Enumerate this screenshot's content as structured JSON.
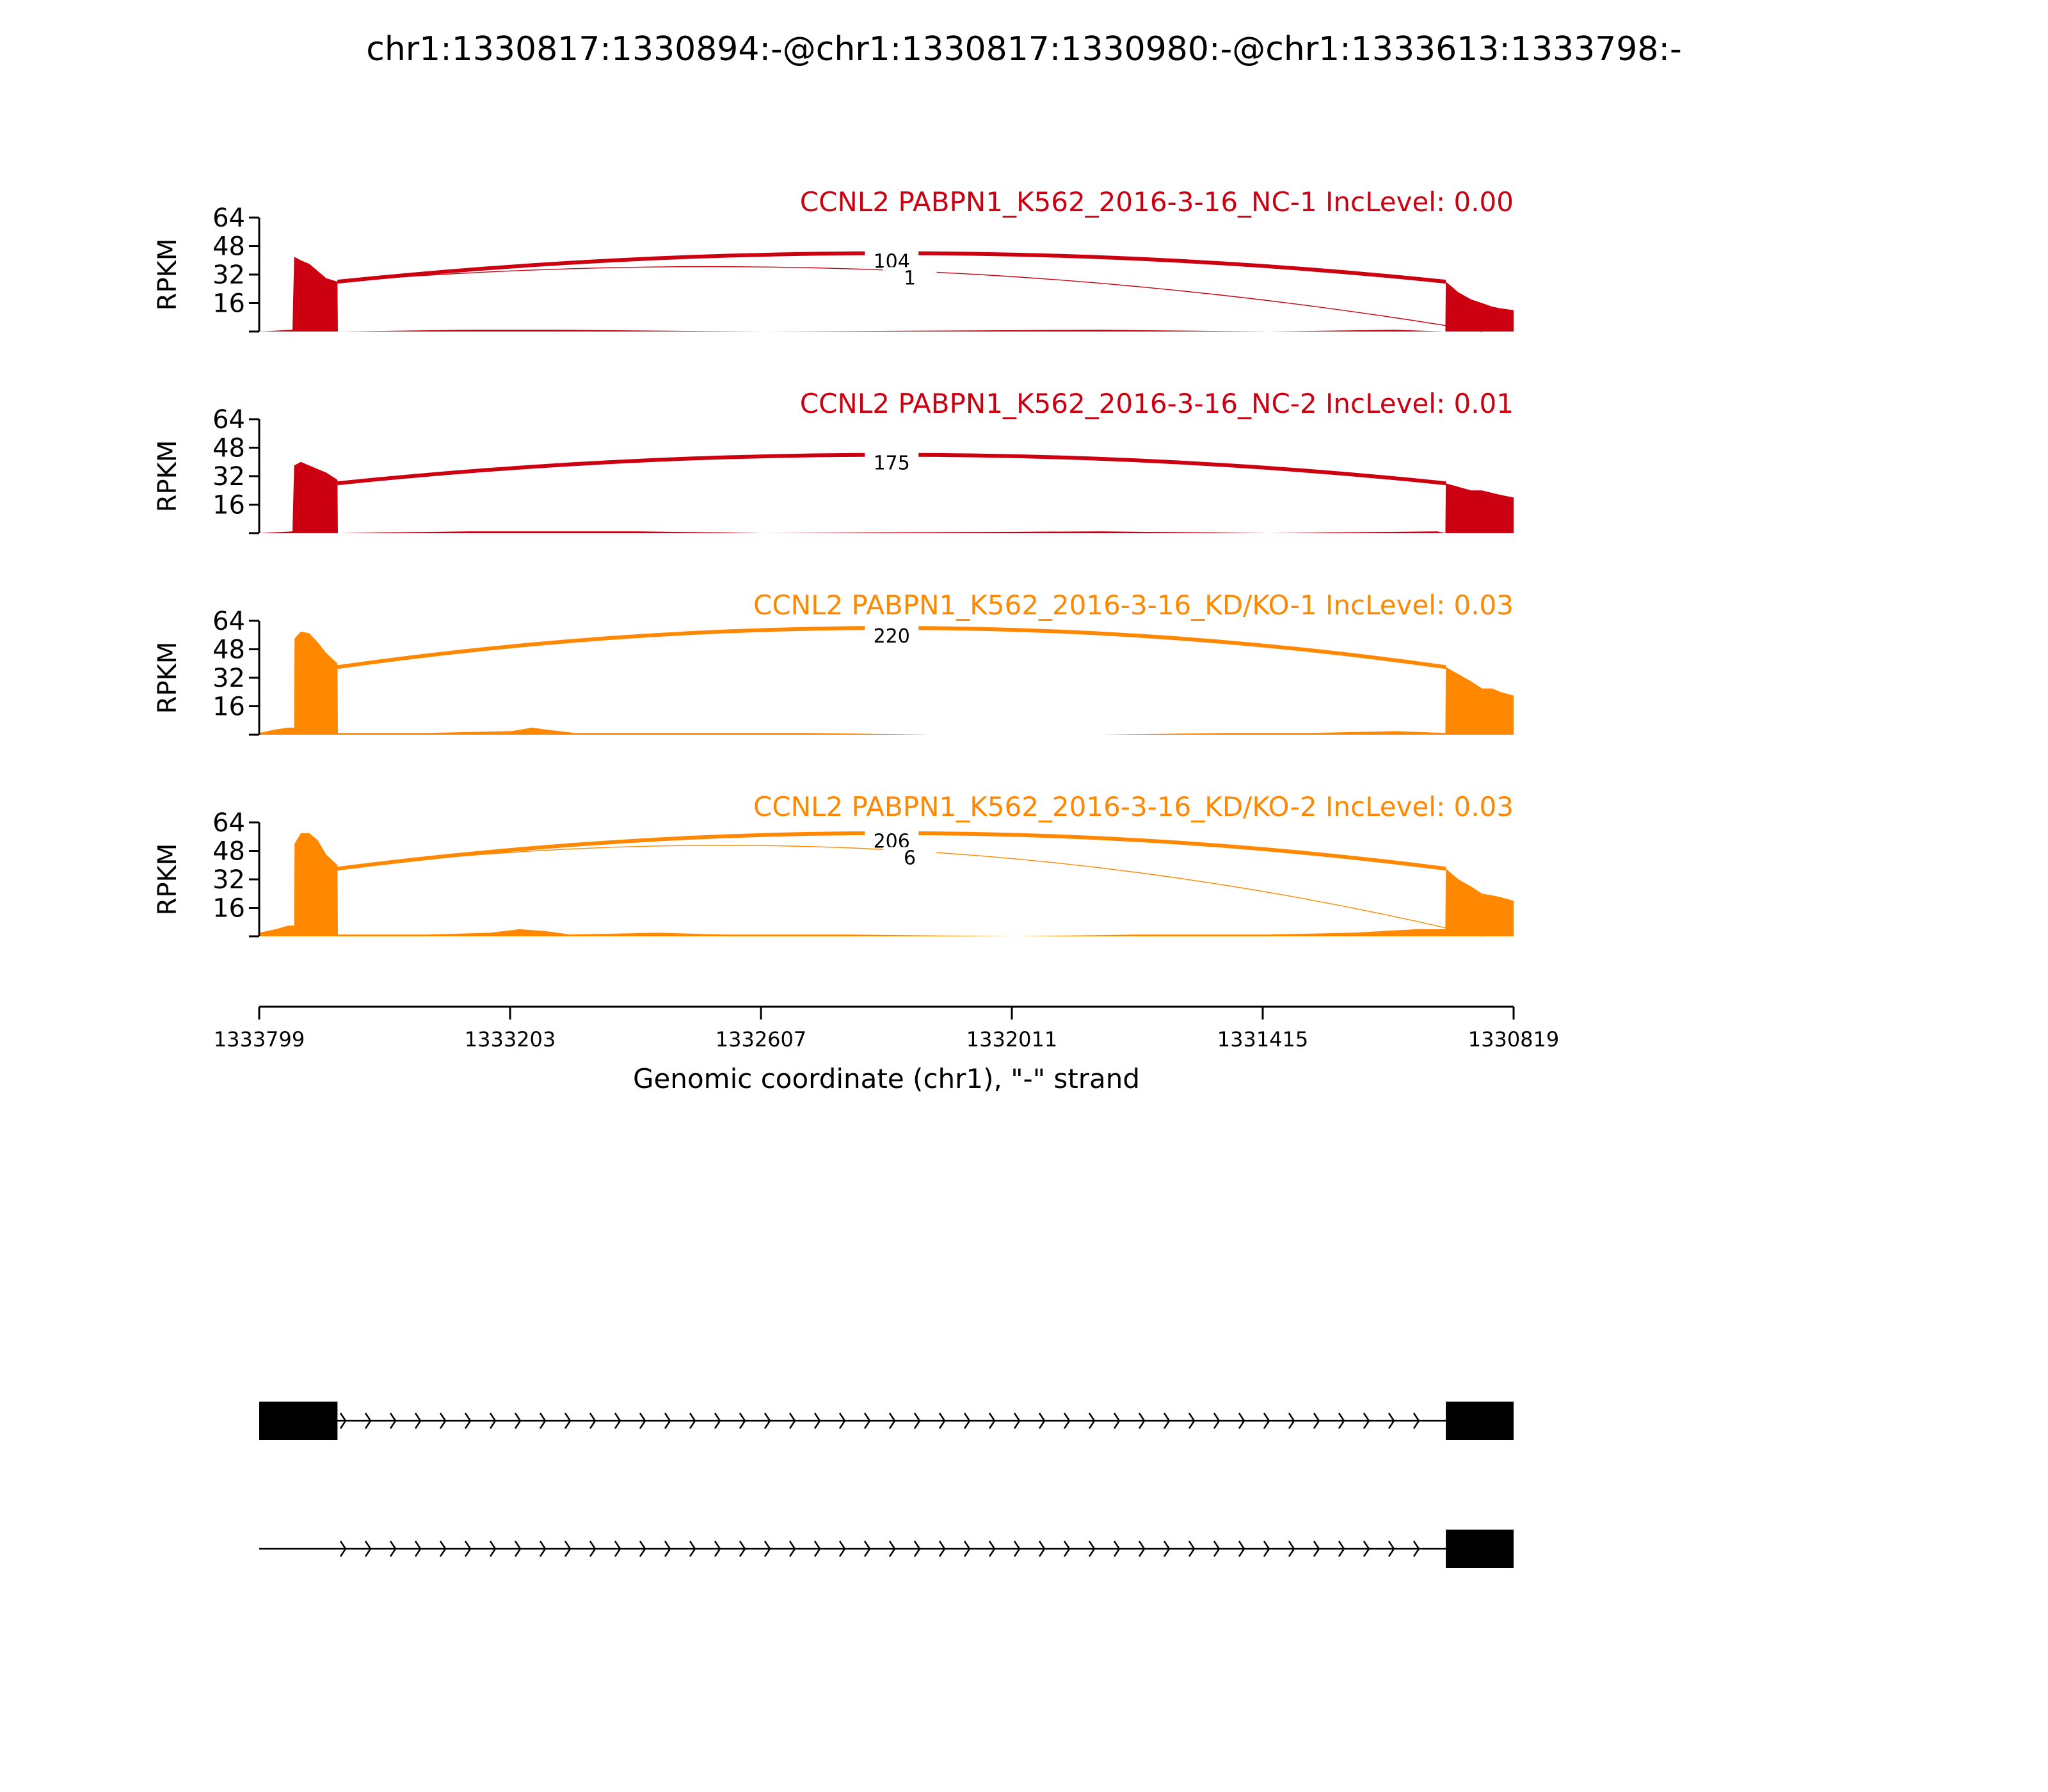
{
  "chart_data": {
    "type": "area",
    "title": "chr1:1330817:1330894:-@chr1:1330817:1330980:-@chr1:1333613:1333798:-",
    "xlabel": "Genomic coordinate (chr1), \"-\" strand",
    "x_range": [
      1333799,
      1330819
    ],
    "x_ticks": [
      "1333799",
      "1333203",
      "1332607",
      "1332011",
      "1331415",
      "1330819"
    ],
    "ylabel": "RPKM",
    "ylim": [
      0,
      64
    ],
    "y_ticks": [
      "16",
      "32",
      "48",
      "64"
    ],
    "tracks": [
      {
        "label": "CCNL2 PABPN1_K562_2016-3-16_NC-1 IncLevel: 0.00",
        "color": "#cc0011",
        "coverage": [
          [
            1333799,
            0
          ],
          [
            1333720,
            1
          ],
          [
            1333716,
            42
          ],
          [
            1333700,
            40
          ],
          [
            1333680,
            38
          ],
          [
            1333660,
            34
          ],
          [
            1333640,
            30
          ],
          [
            1333613,
            28
          ],
          [
            1333612,
            0
          ],
          [
            1333300,
            1
          ],
          [
            1333100,
            1
          ],
          [
            1332600,
            0
          ],
          [
            1331800,
            1
          ],
          [
            1331400,
            0
          ],
          [
            1331100,
            1
          ],
          [
            1330981,
            0
          ],
          [
            1330980,
            28
          ],
          [
            1330950,
            22
          ],
          [
            1330920,
            18
          ],
          [
            1330894,
            16
          ],
          [
            1330870,
            14
          ],
          [
            1330850,
            13
          ],
          [
            1330819,
            12
          ]
        ],
        "junctions": [
          {
            "from": 1333613,
            "to": 1330980,
            "count": "104",
            "height": 44
          },
          {
            "from": 1333613,
            "to": 1330894,
            "count": "1",
            "height": 34
          }
        ]
      },
      {
        "label": "CCNL2 PABPN1_K562_2016-3-16_NC-2 IncLevel: 0.01",
        "color": "#cc0011",
        "coverage": [
          [
            1333799,
            0
          ],
          [
            1333720,
            1
          ],
          [
            1333716,
            38
          ],
          [
            1333700,
            40
          ],
          [
            1333680,
            38
          ],
          [
            1333660,
            36
          ],
          [
            1333640,
            34
          ],
          [
            1333613,
            30
          ],
          [
            1333612,
            0
          ],
          [
            1333300,
            1
          ],
          [
            1332900,
            1
          ],
          [
            1332600,
            0
          ],
          [
            1331800,
            1
          ],
          [
            1331400,
            0
          ],
          [
            1331000,
            1
          ],
          [
            1330981,
            0
          ],
          [
            1330980,
            28
          ],
          [
            1330950,
            26
          ],
          [
            1330920,
            24
          ],
          [
            1330894,
            24
          ],
          [
            1330860,
            22
          ],
          [
            1330840,
            21
          ],
          [
            1330819,
            20
          ]
        ],
        "junctions": [
          {
            "from": 1333613,
            "to": 1330980,
            "count": "175",
            "height": 44
          }
        ]
      },
      {
        "label": "CCNL2 PABPN1_K562_2016-3-16_KD/KO-1 IncLevel: 0.03",
        "color": "#ff8800",
        "coverage": [
          [
            1333799,
            1
          ],
          [
            1333760,
            3
          ],
          [
            1333730,
            4
          ],
          [
            1333716,
            4
          ],
          [
            1333715,
            54
          ],
          [
            1333700,
            58
          ],
          [
            1333680,
            57
          ],
          [
            1333660,
            52
          ],
          [
            1333640,
            46
          ],
          [
            1333613,
            40
          ],
          [
            1333612,
            1
          ],
          [
            1333400,
            1
          ],
          [
            1333200,
            2
          ],
          [
            1333150,
            4
          ],
          [
            1333120,
            3
          ],
          [
            1333050,
            1
          ],
          [
            1332700,
            1
          ],
          [
            1332500,
            1
          ],
          [
            1332200,
            0
          ],
          [
            1331800,
            0
          ],
          [
            1331500,
            1
          ],
          [
            1331300,
            1
          ],
          [
            1331100,
            2
          ],
          [
            1330981,
            1
          ],
          [
            1330980,
            38
          ],
          [
            1330950,
            34
          ],
          [
            1330920,
            30
          ],
          [
            1330894,
            26
          ],
          [
            1330870,
            26
          ],
          [
            1330850,
            24
          ],
          [
            1330819,
            22
          ]
        ],
        "junctions": [
          {
            "from": 1333613,
            "to": 1330980,
            "count": "220",
            "height": 60
          }
        ]
      },
      {
        "label": "CCNL2 PABPN1_K562_2016-3-16_KD/KO-2 IncLevel: 0.03",
        "color": "#ff8800",
        "coverage": [
          [
            1333799,
            2
          ],
          [
            1333760,
            4
          ],
          [
            1333730,
            6
          ],
          [
            1333716,
            6
          ],
          [
            1333715,
            52
          ],
          [
            1333700,
            58
          ],
          [
            1333680,
            58
          ],
          [
            1333660,
            54
          ],
          [
            1333640,
            46
          ],
          [
            1333613,
            40
          ],
          [
            1333612,
            1
          ],
          [
            1333400,
            1
          ],
          [
            1333250,
            2
          ],
          [
            1333180,
            4
          ],
          [
            1333120,
            3
          ],
          [
            1333060,
            1
          ],
          [
            1332850,
            2
          ],
          [
            1332700,
            1
          ],
          [
            1332400,
            1
          ],
          [
            1332000,
            0
          ],
          [
            1331700,
            1
          ],
          [
            1331400,
            1
          ],
          [
            1331200,
            2
          ],
          [
            1331050,
            4
          ],
          [
            1330981,
            4
          ],
          [
            1330980,
            38
          ],
          [
            1330950,
            32
          ],
          [
            1330920,
            28
          ],
          [
            1330894,
            24
          ],
          [
            1330870,
            23
          ],
          [
            1330850,
            22
          ],
          [
            1330819,
            20
          ]
        ],
        "junctions": [
          {
            "from": 1333613,
            "to": 1330980,
            "count": "206",
            "height": 58
          },
          {
            "from": 1333613,
            "to": 1330894,
            "count": "6",
            "height": 48
          }
        ]
      }
    ],
    "gene_models": [
      {
        "exons": [
          [
            1333799,
            1333613
          ],
          [
            1330980,
            1330819
          ]
        ],
        "intron": [
          1333799,
          1330819
        ]
      },
      {
        "exons": [
          [
            1330980,
            1330819
          ]
        ],
        "intron": [
          1333799,
          1330819
        ]
      }
    ]
  }
}
